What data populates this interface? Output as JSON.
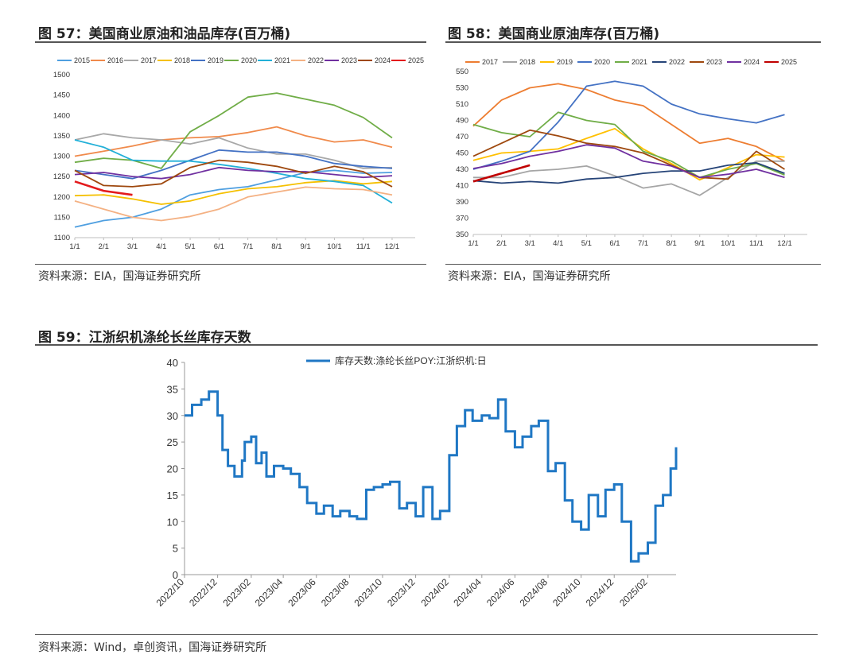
{
  "figures": {
    "fig57": {
      "title": "图 57：美国商业原油和油品库存(百万桶)",
      "source": "资料来源：EIA，国海证券研究所"
    },
    "fig58": {
      "title": "图 58：美国商业原油库存(百万桶)",
      "source": "资料来源：EIA，国海证券研究所"
    },
    "fig59": {
      "title": "图 59：江浙织机涤纶长丝库存天数",
      "source": "资料来源：Wind，卓创资讯，国海证券研究所"
    }
  },
  "chart_data": [
    {
      "id": "fig57",
      "type": "line",
      "title": "",
      "xlabel": "",
      "ylabel": "",
      "x_ticks": [
        "1/1",
        "2/1",
        "3/1",
        "4/1",
        "5/1",
        "6/1",
        "7/1",
        "8/1",
        "9/1",
        "10/1",
        "11/1",
        "12/1"
      ],
      "ylim": [
        1100,
        1500
      ],
      "y_ticks": [
        1100,
        1150,
        1200,
        1250,
        1300,
        1350,
        1400,
        1450,
        1500
      ],
      "grid": false,
      "legend": "top",
      "series": [
        {
          "name": "2015",
          "color": "#4f9fe0",
          "values": [
            1126,
            1142,
            1150,
            1170,
            1205,
            1218,
            1225,
            1242,
            1260,
            1265,
            1258,
            1260
          ]
        },
        {
          "name": "2016",
          "color": "#f08a4b",
          "values": [
            1300,
            1312,
            1325,
            1340,
            1345,
            1348,
            1358,
            1372,
            1350,
            1335,
            1340,
            1322
          ]
        },
        {
          "name": "2017",
          "color": "#a8a8a8",
          "values": [
            1340,
            1355,
            1345,
            1340,
            1330,
            1345,
            1320,
            1305,
            1305,
            1290,
            1270,
            1272
          ]
        },
        {
          "name": "2018",
          "color": "#f5c000",
          "values": [
            1203,
            1205,
            1195,
            1182,
            1190,
            1208,
            1220,
            1225,
            1235,
            1240,
            1232,
            1238
          ]
        },
        {
          "name": "2019",
          "color": "#4472c4",
          "values": [
            1265,
            1255,
            1245,
            1265,
            1290,
            1315,
            1310,
            1310,
            1300,
            1282,
            1275,
            1270
          ]
        },
        {
          "name": "2020",
          "color": "#70ad47",
          "values": [
            1285,
            1295,
            1290,
            1270,
            1360,
            1400,
            1445,
            1455,
            1440,
            1425,
            1395,
            1345
          ]
        },
        {
          "name": "2021",
          "color": "#22b0d8",
          "values": [
            1340,
            1322,
            1290,
            1288,
            1288,
            1280,
            1270,
            1258,
            1245,
            1238,
            1228,
            1185
          ]
        },
        {
          "name": "2022",
          "color": "#f4b183",
          "values": [
            1190,
            1170,
            1150,
            1142,
            1152,
            1170,
            1200,
            1212,
            1224,
            1220,
            1218,
            1205
          ]
        },
        {
          "name": "2023",
          "color": "#7030a0",
          "values": [
            1255,
            1260,
            1250,
            1245,
            1255,
            1272,
            1265,
            1262,
            1262,
            1255,
            1248,
            1252
          ]
        },
        {
          "name": "2024",
          "color": "#9e480e",
          "values": [
            1265,
            1228,
            1225,
            1232,
            1272,
            1290,
            1285,
            1275,
            1258,
            1275,
            1262,
            1225
          ]
        },
        {
          "name": "2025",
          "color": "#e31a1c",
          "values": [
            1238,
            1215,
            1205
          ]
        }
      ]
    },
    {
      "id": "fig58",
      "type": "line",
      "title": "",
      "xlabel": "",
      "ylabel": "",
      "x_ticks": [
        "1/1",
        "2/1",
        "3/1",
        "4/1",
        "5/1",
        "6/1",
        "7/1",
        "8/1",
        "9/1",
        "10/1",
        "11/1",
        "12/1"
      ],
      "ylim": [
        350,
        550
      ],
      "y_ticks": [
        350,
        370,
        390,
        410,
        430,
        450,
        470,
        490,
        510,
        530,
        550
      ],
      "grid": false,
      "legend": "top",
      "series": [
        {
          "name": "2017",
          "color": "#ed7d31",
          "values": [
            483,
            515,
            530,
            535,
            528,
            515,
            508,
            485,
            462,
            468,
            458,
            440
          ]
        },
        {
          "name": "2018",
          "color": "#a5a5a5",
          "values": [
            420,
            420,
            428,
            430,
            434,
            422,
            407,
            412,
            398,
            420,
            440,
            440
          ]
        },
        {
          "name": "2019",
          "color": "#ffc000",
          "values": [
            441,
            450,
            452,
            455,
            468,
            480,
            455,
            437,
            417,
            432,
            448,
            445
          ]
        },
        {
          "name": "2020",
          "color": "#4472c4",
          "values": [
            430,
            440,
            452,
            488,
            532,
            538,
            532,
            510,
            498,
            492,
            487,
            497
          ]
        },
        {
          "name": "2021",
          "color": "#70ad47",
          "values": [
            485,
            475,
            470,
            500,
            490,
            485,
            452,
            440,
            420,
            430,
            437,
            423
          ]
        },
        {
          "name": "2022",
          "color": "#264478",
          "values": [
            416,
            413,
            415,
            413,
            418,
            420,
            425,
            428,
            428,
            435,
            438,
            425
          ]
        },
        {
          "name": "2023",
          "color": "#9e480e",
          "values": [
            446,
            462,
            478,
            471,
            462,
            458,
            450,
            435,
            420,
            418,
            452,
            430
          ]
        },
        {
          "name": "2024",
          "color": "#7030a0",
          "values": [
            431,
            437,
            446,
            452,
            460,
            456,
            440,
            434,
            420,
            424,
            430,
            420
          ]
        },
        {
          "name": "2025",
          "color": "#c00000",
          "values": [
            415,
            425,
            435
          ]
        }
      ]
    },
    {
      "id": "fig59",
      "type": "line",
      "title": "",
      "xlabel": "",
      "ylabel": "",
      "ylim": [
        0,
        40
      ],
      "y_ticks": [
        0,
        5,
        10,
        15,
        20,
        25,
        30,
        35,
        40
      ],
      "x_ticks": [
        "2022/10",
        "2022/12",
        "2023/02",
        "2023/04",
        "2023/06",
        "2023/08",
        "2023/10",
        "2023/12",
        "2024/02",
        "2024/04",
        "2024/06",
        "2024/08",
        "2024/10",
        "2024/12",
        "2025/02"
      ],
      "grid": false,
      "legend": "top",
      "series": [
        {
          "name": "库存天数:涤纶长丝POY:江浙织机:日",
          "color": "#1f77c4",
          "x": [
            "2022-10-01",
            "2022-10-15",
            "2022-11-01",
            "2022-11-15",
            "2022-12-01",
            "2022-12-10",
            "2022-12-20",
            "2023-01-01",
            "2023-01-15",
            "2023-01-20",
            "2023-02-01",
            "2023-02-10",
            "2023-02-20",
            "2023-03-01",
            "2023-03-15",
            "2023-04-01",
            "2023-04-15",
            "2023-05-01",
            "2023-05-15",
            "2023-06-01",
            "2023-06-15",
            "2023-07-01",
            "2023-07-15",
            "2023-08-01",
            "2023-08-15",
            "2023-09-01",
            "2023-09-15",
            "2023-10-01",
            "2023-10-15",
            "2023-11-01",
            "2023-11-15",
            "2023-12-01",
            "2023-12-15",
            "2024-01-01",
            "2024-01-15",
            "2024-02-01",
            "2024-02-15",
            "2024-03-01",
            "2024-03-15",
            "2024-04-01",
            "2024-04-15",
            "2024-05-01",
            "2024-05-15",
            "2024-06-01",
            "2024-06-15",
            "2024-07-01",
            "2024-07-15",
            "2024-08-01",
            "2024-08-15",
            "2024-09-01",
            "2024-09-15",
            "2024-10-01",
            "2024-10-15",
            "2024-11-01",
            "2024-11-15",
            "2024-12-01",
            "2024-12-15",
            "2025-01-01",
            "2025-01-15",
            "2025-02-01",
            "2025-02-15",
            "2025-03-01",
            "2025-03-15",
            "2025-03-25"
          ],
          "values": [
            30,
            32,
            33,
            34.5,
            30,
            23.5,
            20.5,
            18.5,
            21.5,
            25,
            26,
            21,
            23,
            18.5,
            20.5,
            20,
            19,
            16.5,
            13.5,
            11.5,
            13,
            11,
            12,
            11,
            10.5,
            16,
            16.5,
            17,
            17.5,
            12.5,
            13.5,
            11,
            16.5,
            10.5,
            12,
            22.5,
            28,
            31,
            29,
            30,
            29.5,
            33,
            27,
            24,
            26,
            28,
            29,
            19.5,
            21,
            14,
            10,
            8.5,
            15,
            11,
            16,
            17,
            10,
            2.5,
            4,
            6,
            13,
            15,
            20,
            24
          ]
        }
      ]
    }
  ]
}
